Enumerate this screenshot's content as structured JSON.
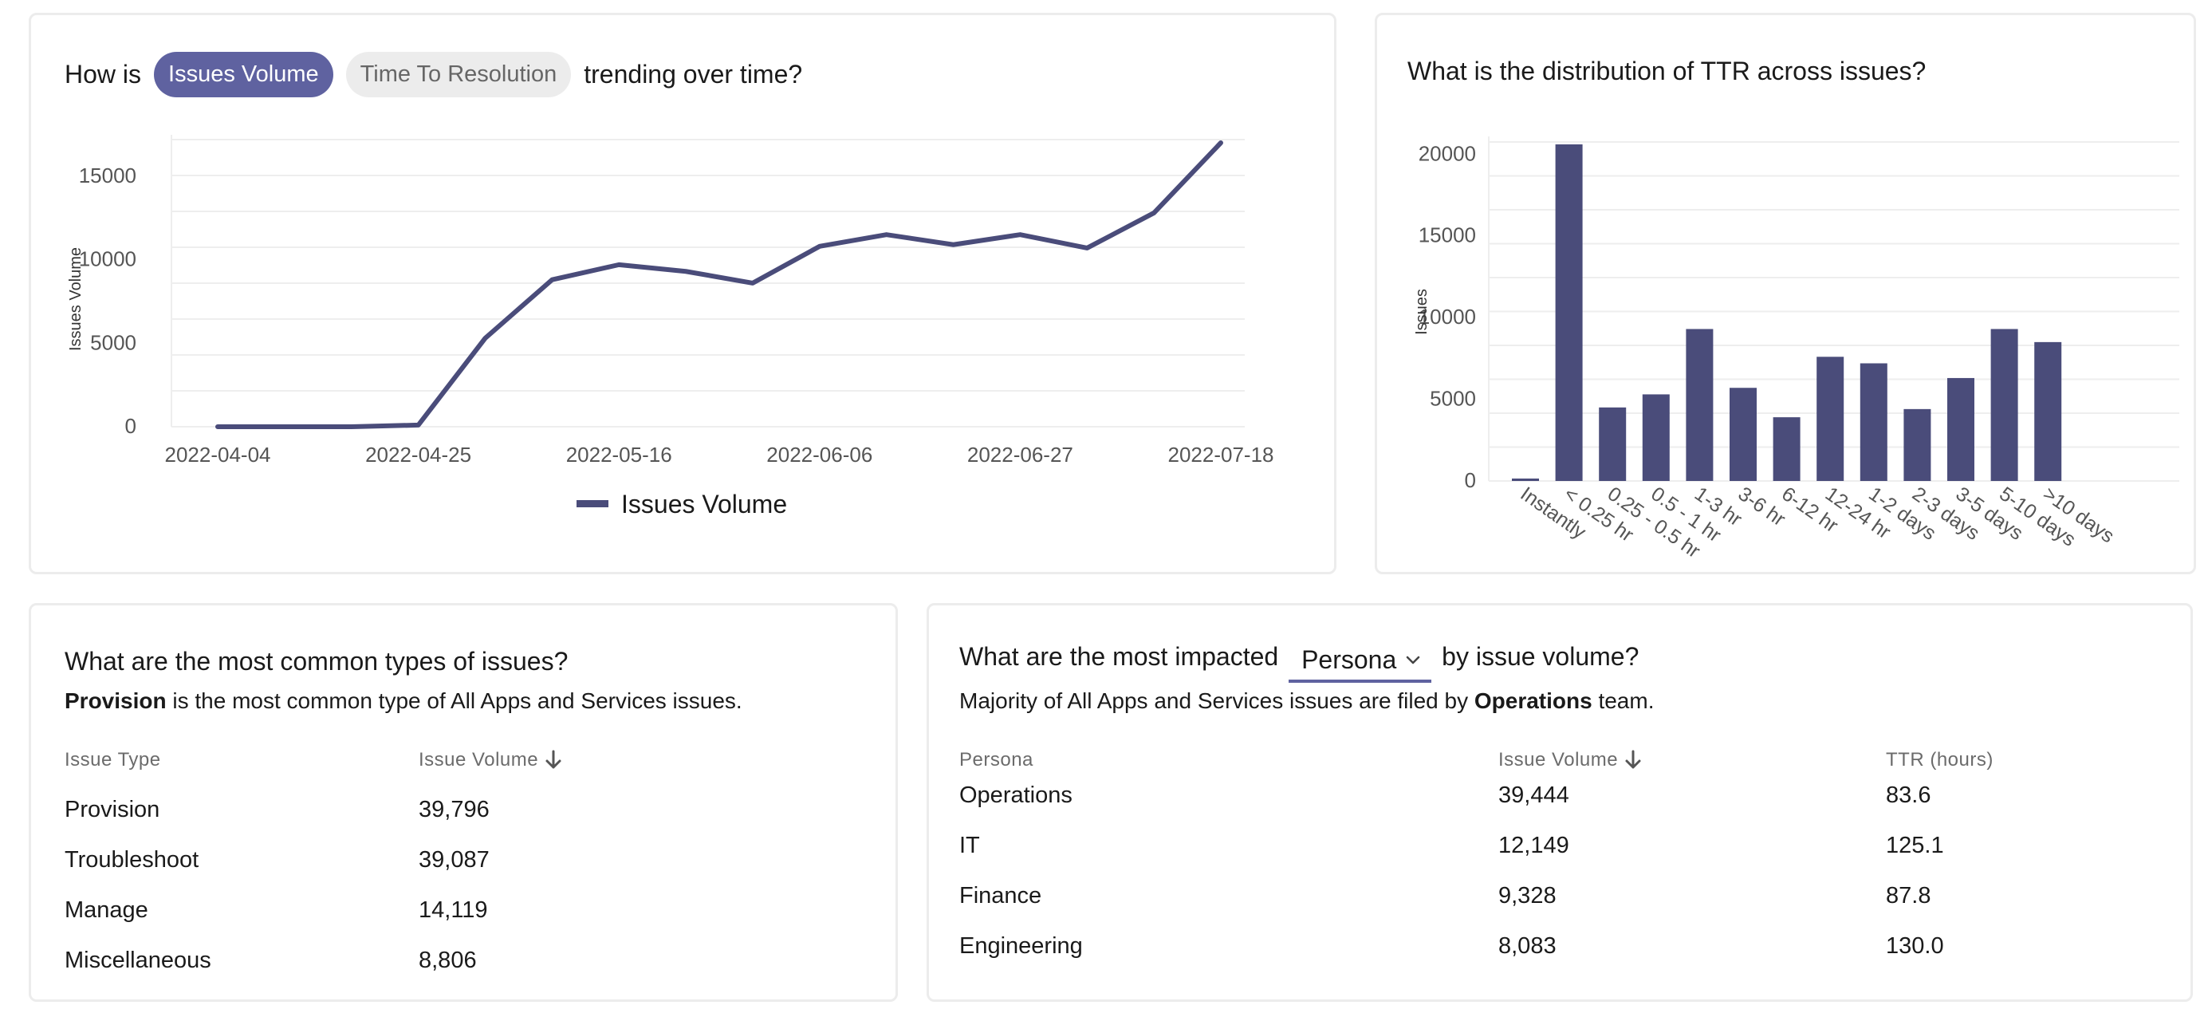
{
  "trend": {
    "title_prefix": "How is",
    "title_suffix": "trending over time?",
    "toggle_active": "Issues Volume",
    "toggle_inactive": "Time To Resolution",
    "chart_data": {
      "type": "line",
      "x": [
        "2022-04-04",
        "2022-04-11",
        "2022-04-18",
        "2022-04-25",
        "2022-05-02",
        "2022-05-09",
        "2022-05-16",
        "2022-05-23",
        "2022-05-30",
        "2022-06-06",
        "2022-06-13",
        "2022-06-20",
        "2022-06-27",
        "2022-07-04",
        "2022-07-11",
        "2022-07-18"
      ],
      "series": [
        {
          "name": "Issues Volume",
          "values": [
            0,
            0,
            0,
            100,
            5300,
            8800,
            9700,
            9300,
            8600,
            10800,
            11500,
            10900,
            11500,
            10700,
            12800,
            17000
          ]
        }
      ],
      "xticks": [
        "2022-04-04",
        "2022-04-25",
        "2022-05-16",
        "2022-06-06",
        "2022-06-27",
        "2022-07-18"
      ],
      "yticks": [
        "0",
        "5000",
        "10000",
        "15000"
      ],
      "ylabel": "Issues Volume",
      "ylim": [
        0,
        17000
      ],
      "grid": true,
      "legend": "bottom",
      "color": "#4a4c7a"
    }
  },
  "distribution": {
    "title": "What is the distribution of TTR across issues?",
    "chart_data": {
      "type": "bar",
      "categories": [
        "Instantly",
        "< 0.25 hr",
        "0.25 - 0.5 hr",
        "0.5 - 1 hr",
        "1-3 hr",
        "3-6 hr",
        "6-12 hr",
        "12-24 hr",
        "1-2 days",
        "2-3 days",
        "3-5 days",
        "5-10 days",
        ">10 days"
      ],
      "values": [
        150,
        20600,
        4500,
        5300,
        9300,
        5700,
        3900,
        7600,
        7200,
        4400,
        6300,
        9300,
        8500
      ],
      "yticks": [
        "0",
        "5000",
        "10000",
        "15000",
        "20000"
      ],
      "ylabel": "Issues",
      "ylim": [
        0,
        20600
      ],
      "grid": true,
      "color": "#4a4c7a"
    }
  },
  "types": {
    "title": "What are the most common types of issues?",
    "subtitle_bold": "Provision",
    "subtitle_rest": " is the most common type of All Apps and Services issues.",
    "col_type": "Issue Type",
    "col_volume": "Issue Volume",
    "rows": [
      {
        "type": "Provision",
        "volume": "39,796"
      },
      {
        "type": "Troubleshoot",
        "volume": "39,087"
      },
      {
        "type": "Manage",
        "volume": "14,119"
      },
      {
        "type": "Miscellaneous",
        "volume": "8,806"
      }
    ]
  },
  "persona": {
    "title_prefix": "What are the most impacted",
    "select_value": "Persona",
    "title_suffix": "by issue volume?",
    "subtitle_prefix": "Majority of All Apps and Services issues are filed by ",
    "subtitle_bold": "Operations",
    "subtitle_suffix": " team.",
    "col_persona": "Persona",
    "col_volume": "Issue Volume",
    "col_ttr": "TTR (hours)",
    "rows": [
      {
        "persona": "Operations",
        "volume": "39,444",
        "ttr": "83.6"
      },
      {
        "persona": "IT",
        "volume": "12,149",
        "ttr": "125.1"
      },
      {
        "persona": "Finance",
        "volume": "9,328",
        "ttr": "87.8"
      },
      {
        "persona": "Engineering",
        "volume": "8,083",
        "ttr": "130.0"
      }
    ]
  },
  "icons": {
    "sort": "arrow-down-icon",
    "dropdown": "chevron-down-icon"
  }
}
